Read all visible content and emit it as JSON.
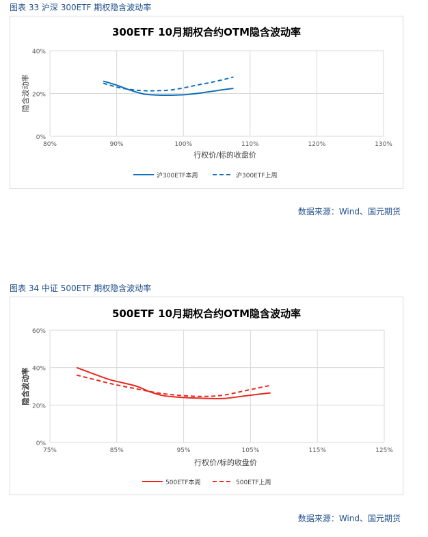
{
  "figures": [
    {
      "caption": "图表 33 沪深 300ETF 期权隐含波动率",
      "source": "数据来源：Wind、国元期货"
    },
    {
      "caption": "图表 34 中证 500ETF 期权隐含波动率",
      "source": "数据来源：Wind、国元期货"
    }
  ],
  "chart_data": [
    {
      "type": "line",
      "title": "300ETF 10月期权合约OTM隐含波动率",
      "xlabel": "行权价/标的收盘价",
      "ylabel": "隐含波动率",
      "xlim": [
        80,
        130
      ],
      "ylim": [
        0,
        40
      ],
      "xticks": [
        80,
        90,
        100,
        110,
        120,
        130
      ],
      "xtick_labels": [
        "80%",
        "90%",
        "100%",
        "110%",
        "120%",
        "130%"
      ],
      "yticks": [
        0,
        20,
        40
      ],
      "ytick_labels": [
        "0%",
        "20%",
        "40%"
      ],
      "grid": true,
      "legend": "bottom",
      "series": [
        {
          "name": "沪300ETF本周",
          "color": "#0f6fb8",
          "dash": "solid",
          "x": [
            88,
            90,
            92,
            94,
            96,
            98,
            100,
            102,
            104,
            106,
            107.5
          ],
          "y": [
            25.8,
            23.9,
            21.6,
            19.8,
            19.3,
            19.2,
            19.4,
            20.0,
            20.9,
            21.8,
            22.4
          ]
        },
        {
          "name": "沪300ETF上周",
          "color": "#0f6fb8",
          "dash": "dashed",
          "x": [
            88,
            90,
            92,
            94,
            96,
            98,
            100,
            102,
            104,
            106,
            107.5
          ],
          "y": [
            24.8,
            23.0,
            21.9,
            21.3,
            21.3,
            21.6,
            22.6,
            23.9,
            25.1,
            26.5,
            27.7
          ]
        }
      ]
    },
    {
      "type": "line",
      "title": "500ETF 10月期权合约OTM隐含波动率",
      "xlabel": "行权价/标的收盘价",
      "ylabel": "隐含波动率",
      "xlim": [
        75,
        125
      ],
      "ylim": [
        0,
        60
      ],
      "xticks": [
        75,
        85,
        95,
        105,
        115,
        125
      ],
      "xtick_labels": [
        "75%",
        "85%",
        "95%",
        "105%",
        "115%",
        "125%"
      ],
      "yticks": [
        0,
        20,
        40,
        60
      ],
      "ytick_labels": [
        "0%",
        "20%",
        "40%",
        "60%"
      ],
      "grid": true,
      "legend": "bottom",
      "series": [
        {
          "name": "500ETF本周",
          "color": "#e8281f",
          "dash": "solid",
          "x": [
            79,
            82,
            84,
            86,
            88,
            90,
            92,
            95,
            98,
            101,
            104,
            108
          ],
          "y": [
            40.0,
            36.0,
            33.5,
            31.8,
            30.0,
            27.0,
            25.0,
            24.0,
            23.6,
            23.5,
            24.8,
            26.5
          ]
        },
        {
          "name": "500ETF上周",
          "color": "#e8281f",
          "dash": "dashed",
          "x": [
            79,
            82,
            84,
            86,
            88,
            90,
            92,
            95,
            98,
            101,
            104,
            108
          ],
          "y": [
            36.0,
            33.3,
            31.5,
            30.0,
            28.6,
            27.2,
            26.0,
            25.0,
            24.6,
            25.3,
            27.5,
            30.5
          ]
        }
      ]
    }
  ]
}
